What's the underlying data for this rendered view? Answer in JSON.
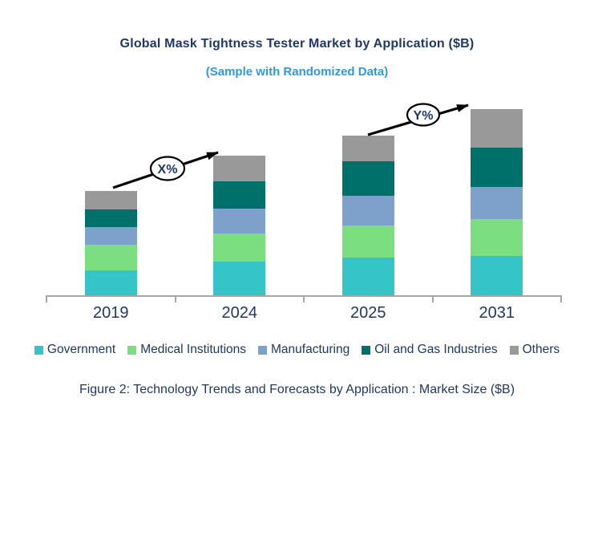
{
  "header": {
    "title": "Global Mask Tightness Tester Market by Application ($B)",
    "subtitle": "(Sample with Randomized Data)"
  },
  "chart_data": {
    "type": "bar",
    "stacked": true,
    "title": "Global Mask Tightness Tester Market by Application ($B)",
    "subtitle": "(Sample with Randomized Data)",
    "unit": "$B",
    "categories": [
      "2019",
      "2024",
      "2025",
      "2031"
    ],
    "series": [
      {
        "name": "Government",
        "color": "#35C4C8",
        "values": [
          3.1,
          4.2,
          4.7,
          4.9
        ]
      },
      {
        "name": "Medical Institutions",
        "color": "#7BDE81",
        "values": [
          3.2,
          3.5,
          4.0,
          4.6
        ]
      },
      {
        "name": "Manufacturing",
        "color": "#7DA1CB",
        "values": [
          2.2,
          3.1,
          3.7,
          4.0
        ]
      },
      {
        "name": "Oil and Gas Industries",
        "color": "#00706B",
        "values": [
          2.2,
          3.4,
          4.3,
          4.9
        ]
      },
      {
        "name": "Others",
        "color": "#999999",
        "values": [
          2.3,
          3.2,
          3.2,
          4.8
        ]
      }
    ],
    "totals": [
      13.0,
      17.4,
      19.9,
      23.2
    ],
    "annotations": [
      {
        "label": "X%",
        "from": "2019",
        "to": "2024"
      },
      {
        "label": "Y%",
        "from": "2025",
        "to": "2031"
      }
    ],
    "legend_position": "bottom",
    "grid": false,
    "y_axis_visible": false,
    "axis_color": "#A6A6A6",
    "title_color": "#1F3864",
    "subtitle_color": "#2E9BD9"
  },
  "caption": {
    "text": "Figure 2: Technology Trends and Forecasts by Application : Market Size ($B)"
  }
}
